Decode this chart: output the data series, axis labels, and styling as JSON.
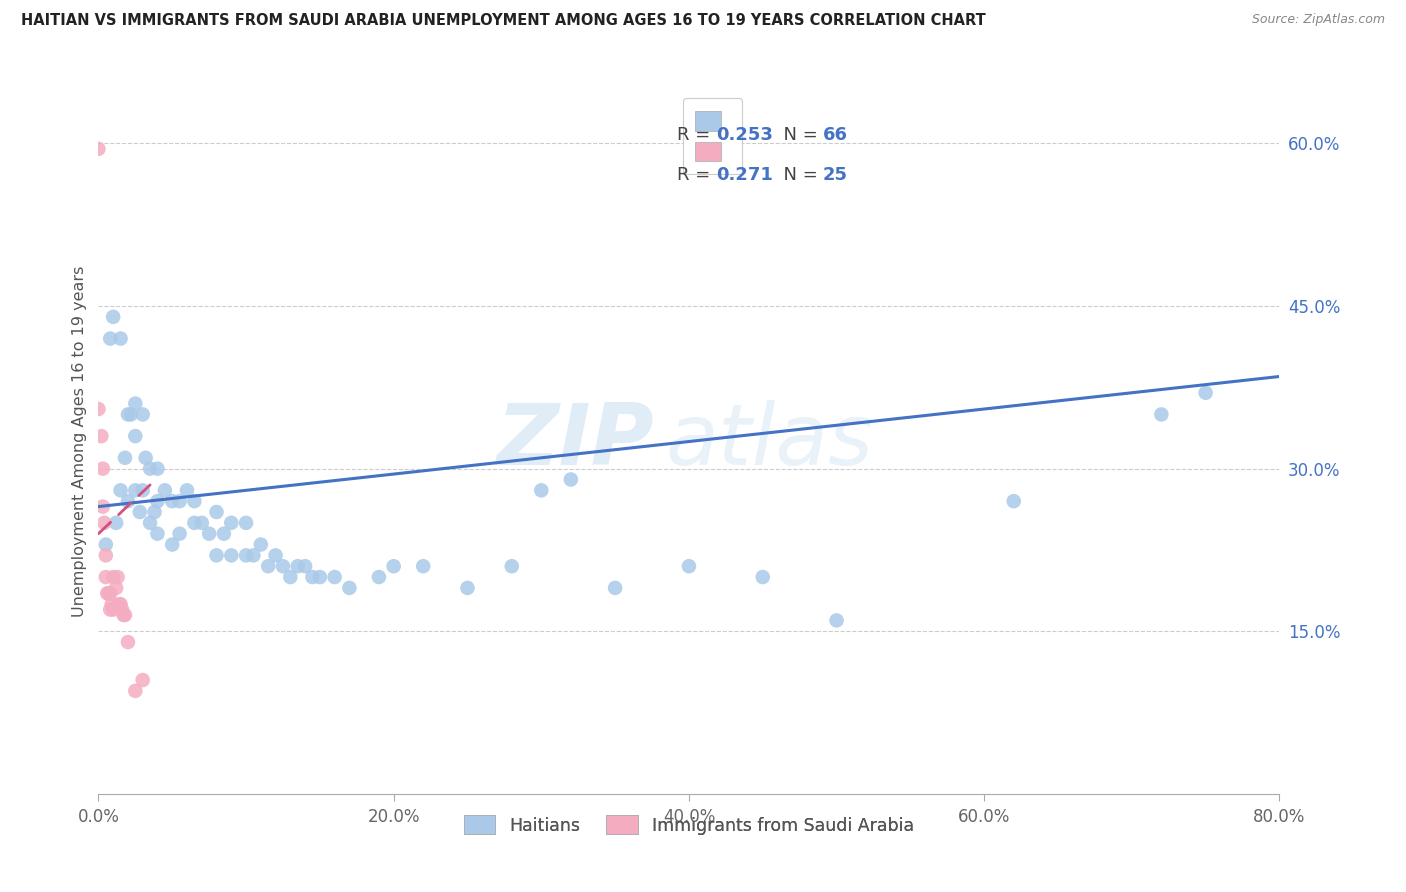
{
  "title": "HAITIAN VS IMMIGRANTS FROM SAUDI ARABIA UNEMPLOYMENT AMONG AGES 16 TO 19 YEARS CORRELATION CHART",
  "source": "Source: ZipAtlas.com",
  "ylabel": "Unemployment Among Ages 16 to 19 years",
  "ylim": [
    0,
    0.65
  ],
  "xlim": [
    0,
    0.8
  ],
  "legend_blue_r": "0.253",
  "legend_blue_n": "66",
  "legend_pink_r": "0.271",
  "legend_pink_n": "25",
  "legend_label_blue": "Haitians",
  "legend_label_pink": "Immigrants from Saudi Arabia",
  "watermark_zip": "ZIP",
  "watermark_atlas": "atlas",
  "blue_color": "#aac9e8",
  "pink_color": "#f4adc0",
  "trend_blue": "#4472c4",
  "trend_pink": "#d45080",
  "tick_color": "#4472c4",
  "blue_scatter_x": [
    0.005,
    0.008,
    0.01,
    0.012,
    0.015,
    0.015,
    0.018,
    0.02,
    0.02,
    0.022,
    0.025,
    0.025,
    0.025,
    0.028,
    0.03,
    0.03,
    0.032,
    0.035,
    0.035,
    0.038,
    0.04,
    0.04,
    0.04,
    0.045,
    0.05,
    0.05,
    0.055,
    0.055,
    0.06,
    0.065,
    0.065,
    0.07,
    0.075,
    0.08,
    0.08,
    0.085,
    0.09,
    0.09,
    0.1,
    0.1,
    0.105,
    0.11,
    0.115,
    0.12,
    0.125,
    0.13,
    0.135,
    0.14,
    0.145,
    0.15,
    0.16,
    0.17,
    0.19,
    0.2,
    0.22,
    0.25,
    0.28,
    0.3,
    0.32,
    0.35,
    0.4,
    0.45,
    0.5,
    0.62,
    0.72,
    0.75
  ],
  "blue_scatter_y": [
    0.23,
    0.42,
    0.44,
    0.25,
    0.42,
    0.28,
    0.31,
    0.35,
    0.27,
    0.35,
    0.36,
    0.33,
    0.28,
    0.26,
    0.35,
    0.28,
    0.31,
    0.3,
    0.25,
    0.26,
    0.3,
    0.27,
    0.24,
    0.28,
    0.27,
    0.23,
    0.27,
    0.24,
    0.28,
    0.27,
    0.25,
    0.25,
    0.24,
    0.26,
    0.22,
    0.24,
    0.25,
    0.22,
    0.25,
    0.22,
    0.22,
    0.23,
    0.21,
    0.22,
    0.21,
    0.2,
    0.21,
    0.21,
    0.2,
    0.2,
    0.2,
    0.19,
    0.2,
    0.21,
    0.21,
    0.19,
    0.21,
    0.28,
    0.29,
    0.19,
    0.21,
    0.2,
    0.16,
    0.27,
    0.35,
    0.37
  ],
  "pink_scatter_x": [
    0.0,
    0.0,
    0.002,
    0.003,
    0.003,
    0.004,
    0.005,
    0.005,
    0.006,
    0.007,
    0.008,
    0.008,
    0.009,
    0.01,
    0.01,
    0.012,
    0.013,
    0.014,
    0.015,
    0.016,
    0.017,
    0.018,
    0.02,
    0.025,
    0.03
  ],
  "pink_scatter_y": [
    0.595,
    0.355,
    0.33,
    0.3,
    0.265,
    0.25,
    0.22,
    0.2,
    0.185,
    0.185,
    0.185,
    0.17,
    0.175,
    0.2,
    0.17,
    0.19,
    0.2,
    0.175,
    0.175,
    0.17,
    0.165,
    0.165,
    0.14,
    0.095,
    0.105
  ],
  "blue_trend_x": [
    0.0,
    0.8
  ],
  "blue_trend_y": [
    0.265,
    0.385
  ],
  "pink_trend_x": [
    0.0,
    0.035
  ],
  "pink_trend_y": [
    0.24,
    0.285
  ]
}
